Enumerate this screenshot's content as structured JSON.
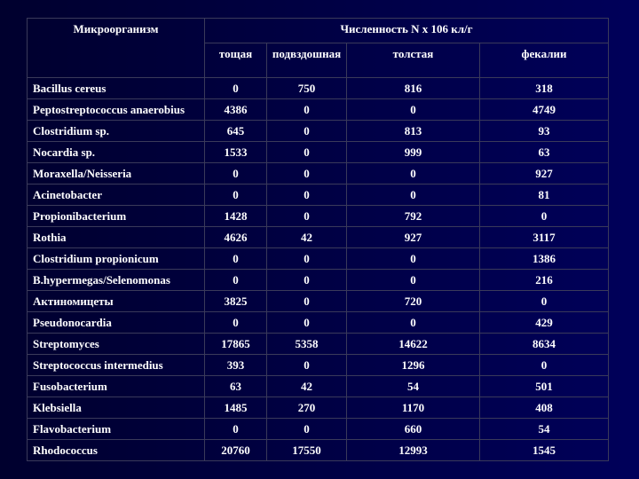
{
  "table": {
    "header": {
      "organism": "Микроорганизм",
      "group": "Численность N x 106 кл/г",
      "columns": [
        "тощая",
        "подвздошная",
        "толстая",
        "фекалии"
      ]
    },
    "rows": [
      [
        "Bacillus cereus",
        0,
        750,
        816,
        318
      ],
      [
        "Peptostreptococcus anaerobius",
        4386,
        0,
        0,
        4749
      ],
      [
        "Clostridium sp.",
        645,
        0,
        813,
        93
      ],
      [
        "Nocardia sp.",
        1533,
        0,
        999,
        63
      ],
      [
        "Moraxella/Neisseria",
        0,
        0,
        0,
        927
      ],
      [
        "Acinetobacter",
        0,
        0,
        0,
        81
      ],
      [
        "Propionibacterium",
        1428,
        0,
        792,
        0
      ],
      [
        "Rothia",
        4626,
        42,
        927,
        3117
      ],
      [
        "Clostridium propionicum",
        0,
        0,
        0,
        1386
      ],
      [
        "B.hypermegas/Selenomonas",
        0,
        0,
        0,
        216
      ],
      [
        "Актиномицеты",
        3825,
        0,
        720,
        0
      ],
      [
        "Pseudonocardia",
        0,
        0,
        0,
        429
      ],
      [
        "Streptomyces",
        17865,
        5358,
        14622,
        8634
      ],
      [
        "Streptococcus intermedius",
        393,
        0,
        1296,
        0
      ],
      [
        "Fusobacterium",
        63,
        42,
        54,
        501
      ],
      [
        "Klebsiella",
        1485,
        270,
        1170,
        408
      ],
      [
        "Flavobacterium",
        0,
        0,
        660,
        54
      ],
      [
        "Rhodococcus",
        20760,
        17550,
        12993,
        1545
      ]
    ]
  }
}
